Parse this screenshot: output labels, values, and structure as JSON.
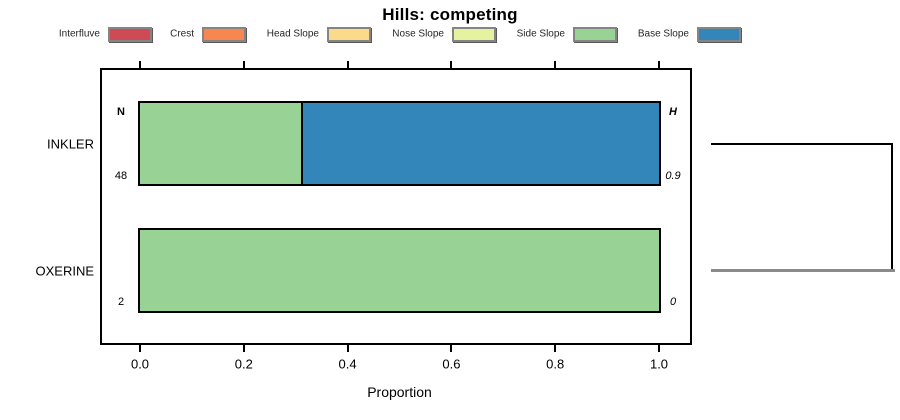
{
  "chart_data": {
    "type": "bar",
    "orientation": "horizontal-stacked",
    "title": "Hills: competing",
    "xlabel": "Proportion",
    "xlim": [
      0.0,
      1.0
    ],
    "x_tick_values": [
      0.0,
      0.2,
      0.4,
      0.6,
      0.8,
      1.0
    ],
    "x_tick_labels": [
      "0.0",
      "0.2",
      "0.4",
      "0.6",
      "0.8",
      "1.0"
    ],
    "grid": false,
    "legend": {
      "position": "top",
      "entries": [
        {
          "label": "Interfluve",
          "color": "#CE4A55"
        },
        {
          "label": "Crest",
          "color": "#F8874F"
        },
        {
          "label": "Head Slope",
          "color": "#FBDA8A"
        },
        {
          "label": "Nose Slope",
          "color": "#E5F2A0"
        },
        {
          "label": "Side Slope",
          "color": "#98D294"
        },
        {
          "label": "Base Slope",
          "color": "#3286BA"
        }
      ]
    },
    "column_headers": {
      "left": "N",
      "right": "H"
    },
    "rows": [
      {
        "category": "INKLER",
        "n": "48",
        "h": "0.9",
        "segments": [
          {
            "name": "Side Slope",
            "value": 0.31
          },
          {
            "name": "Base Slope",
            "value": 0.69
          }
        ]
      },
      {
        "category": "OXERINE",
        "n": "2",
        "h": "0",
        "segments": [
          {
            "name": "Side Slope",
            "value": 1.0
          }
        ]
      }
    ],
    "annotations": {
      "bracket_joins_rows": [
        "INKLER",
        "OXERINE"
      ]
    }
  }
}
